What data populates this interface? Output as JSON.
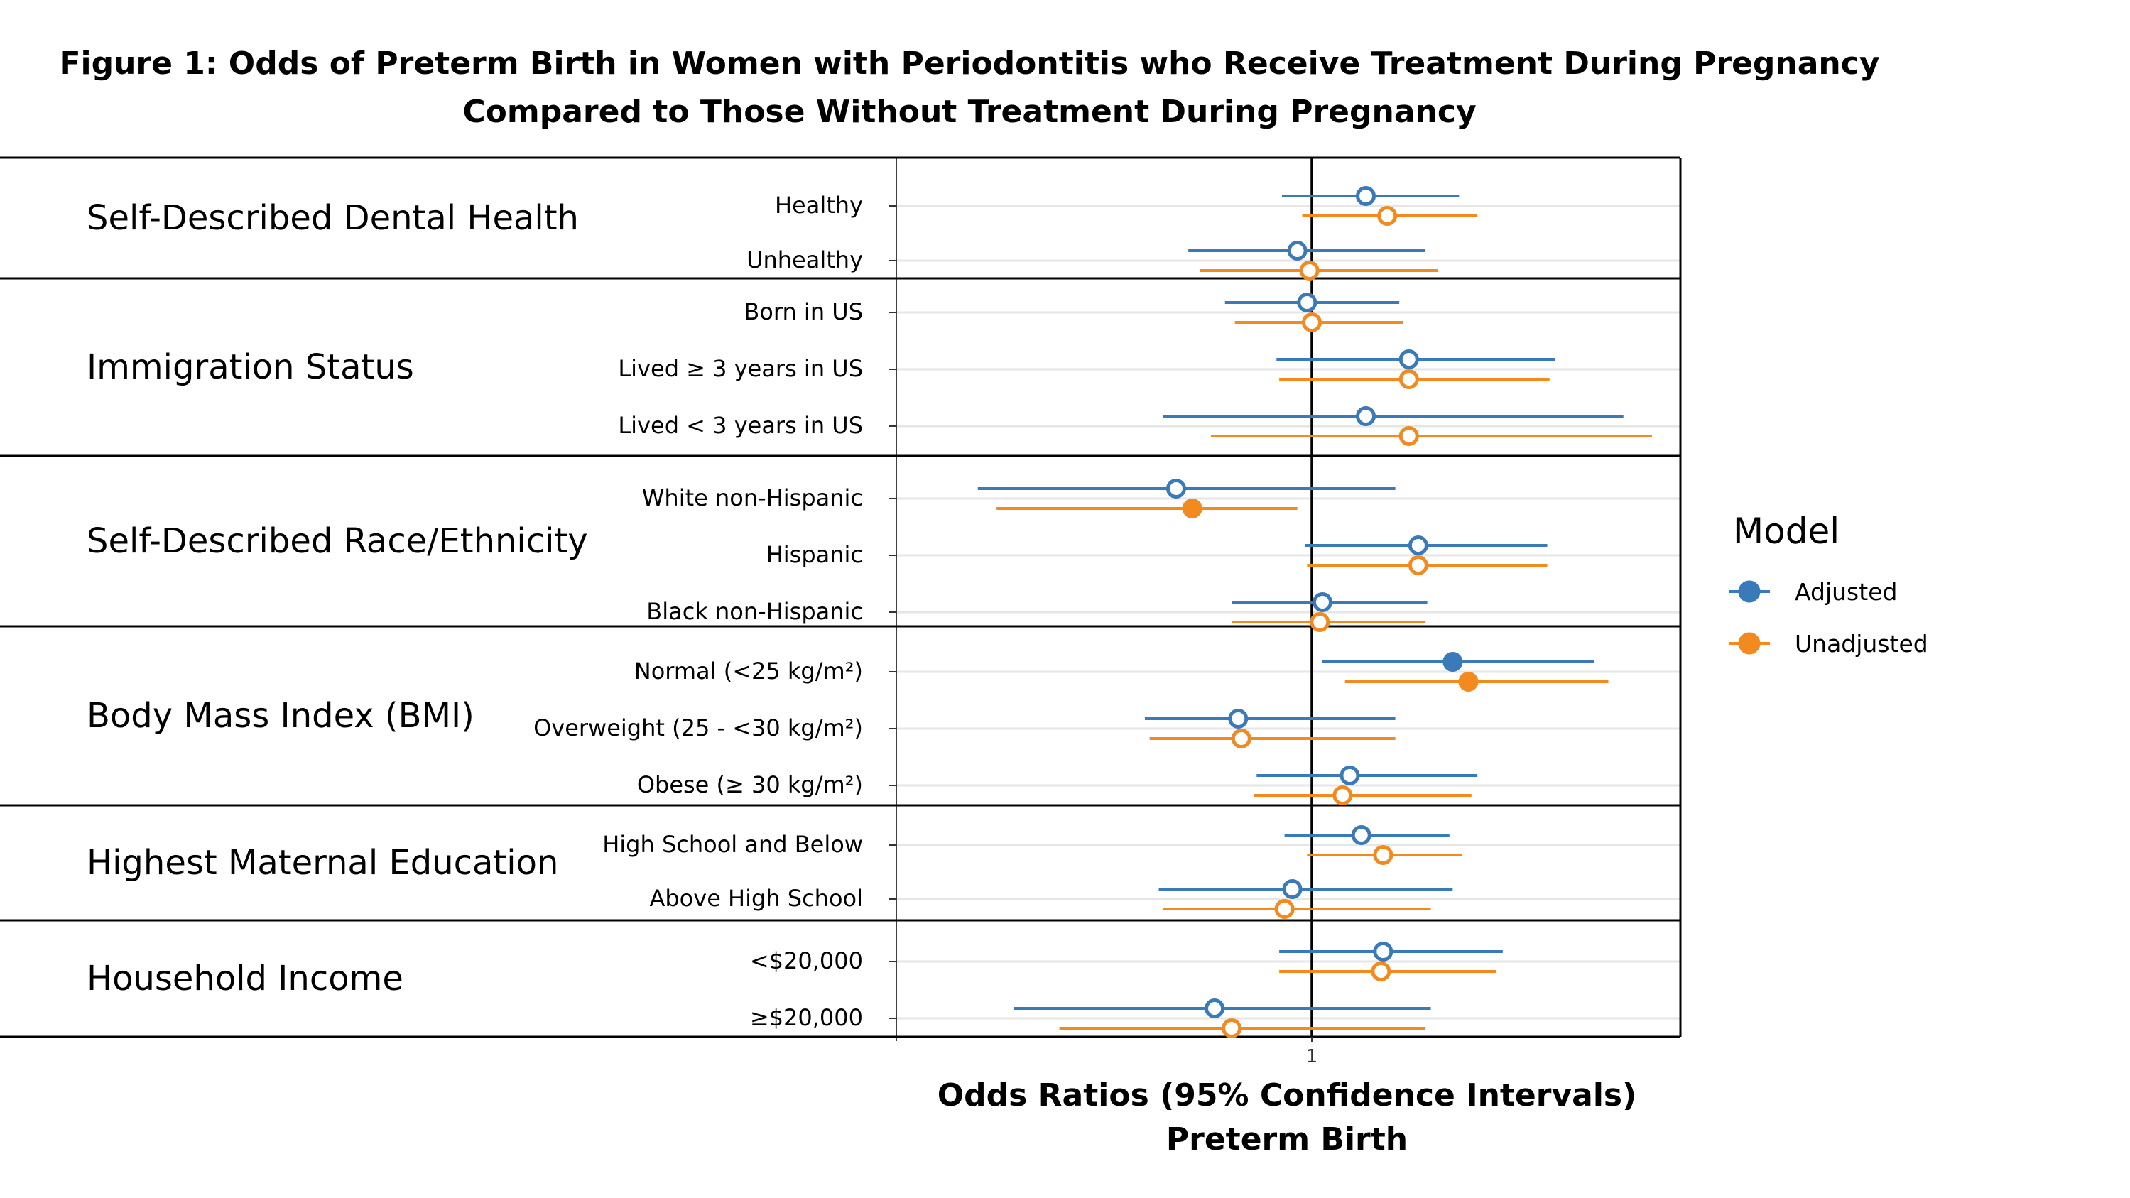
{
  "chart_data": {
    "type": "forest",
    "title": "Figure 1: Odds of Preterm Birth in Women with Periodontitis who Receive Treatment During Pregnancy",
    "subtitle": "Compared to Those Without Treatment During Pregnancy",
    "xlabel": "Odds Ratios (95% Confidence Intervals)",
    "xlabel2": "Preterm Birth",
    "xticks": [
      "1"
    ],
    "xlim": [
      0.18,
      3.5
    ],
    "xscale": "log",
    "reference_line": 1,
    "legend": {
      "title": "Model",
      "position": "right",
      "items": [
        "Adjusted",
        "Unadjusted"
      ]
    },
    "colors": {
      "Adjusted": "#3a7ab8",
      "Unadjusted": "#f28a1f"
    },
    "groups": [
      {
        "label": "Self-Described Dental Health",
        "rows": [
          {
            "label": "Healthy",
            "adjusted": {
              "or": 1.22,
              "lo": 0.88,
              "hi": 1.72,
              "significant": false
            },
            "unadjusted": {
              "or": 1.32,
              "lo": 0.96,
              "hi": 1.84,
              "significant": false
            }
          },
          {
            "label": "Unhealthy",
            "adjusted": {
              "or": 0.94,
              "lo": 0.59,
              "hi": 1.52,
              "significant": false
            },
            "unadjusted": {
              "or": 0.99,
              "lo": 0.62,
              "hi": 1.59,
              "significant": false
            }
          }
        ]
      },
      {
        "label": "Immigration Status",
        "rows": [
          {
            "label": "Born in US",
            "adjusted": {
              "or": 0.98,
              "lo": 0.69,
              "hi": 1.38,
              "significant": false
            },
            "unadjusted": {
              "or": 1.0,
              "lo": 0.72,
              "hi": 1.4,
              "significant": false
            }
          },
          {
            "label": "Lived ≥ 3 years in US",
            "adjusted": {
              "or": 1.43,
              "lo": 0.86,
              "hi": 2.45,
              "significant": false
            },
            "unadjusted": {
              "or": 1.43,
              "lo": 0.87,
              "hi": 2.4,
              "significant": false
            }
          },
          {
            "label": "Lived < 3 years in US",
            "adjusted": {
              "or": 1.22,
              "lo": 0.53,
              "hi": 3.15,
              "significant": false
            },
            "unadjusted": {
              "or": 1.43,
              "lo": 0.65,
              "hi": 3.5,
              "significant": false
            }
          }
        ]
      },
      {
        "label": "Self-Described Race/Ethnicity",
        "rows": [
          {
            "label": "White non-Hispanic",
            "adjusted": {
              "or": 0.56,
              "lo": 0.24,
              "hi": 1.36,
              "significant": false
            },
            "unadjusted": {
              "or": 0.6,
              "lo": 0.26,
              "hi": 0.94,
              "significant": true
            }
          },
          {
            "label": "Hispanic",
            "adjusted": {
              "or": 1.48,
              "lo": 0.97,
              "hi": 2.38,
              "significant": false
            },
            "unadjusted": {
              "or": 1.48,
              "lo": 0.98,
              "hi": 2.38,
              "significant": false
            }
          },
          {
            "label": "Black non-Hispanic",
            "adjusted": {
              "or": 1.04,
              "lo": 0.71,
              "hi": 1.53,
              "significant": false
            },
            "unadjusted": {
              "or": 1.03,
              "lo": 0.71,
              "hi": 1.52,
              "significant": false
            }
          }
        ]
      },
      {
        "label": "Body Mass Index (BMI)",
        "rows": [
          {
            "label": "Normal (<25 kg/m²)",
            "adjusted": {
              "or": 1.68,
              "lo": 1.04,
              "hi": 2.83,
              "significant": true
            },
            "unadjusted": {
              "or": 1.78,
              "lo": 1.13,
              "hi": 2.98,
              "significant": true
            }
          },
          {
            "label": "Overweight (25 - <30 kg/m²)",
            "adjusted": {
              "or": 0.73,
              "lo": 0.49,
              "hi": 1.36,
              "significant": false
            },
            "unadjusted": {
              "or": 0.74,
              "lo": 0.5,
              "hi": 1.36,
              "significant": false
            }
          },
          {
            "label": "Obese (≥ 30 kg/m²)",
            "adjusted": {
              "or": 1.15,
              "lo": 0.79,
              "hi": 1.84,
              "significant": false
            },
            "unadjusted": {
              "or": 1.12,
              "lo": 0.78,
              "hi": 1.8,
              "significant": false
            }
          }
        ]
      },
      {
        "label": "Highest Maternal Education",
        "rows": [
          {
            "label": "High School and Below",
            "adjusted": {
              "or": 1.2,
              "lo": 0.89,
              "hi": 1.66,
              "significant": false
            },
            "unadjusted": {
              "or": 1.3,
              "lo": 0.98,
              "hi": 1.74,
              "significant": false
            }
          },
          {
            "label": "Above High School",
            "adjusted": {
              "or": 0.92,
              "lo": 0.52,
              "hi": 1.68,
              "significant": false
            },
            "unadjusted": {
              "or": 0.89,
              "lo": 0.53,
              "hi": 1.55,
              "significant": false
            }
          }
        ]
      },
      {
        "label": "Household Income",
        "rows": [
          {
            "label": "<$20,000",
            "adjusted": {
              "or": 1.3,
              "lo": 0.87,
              "hi": 2.02,
              "significant": false
            },
            "unadjusted": {
              "or": 1.29,
              "lo": 0.87,
              "hi": 1.97,
              "significant": false
            }
          },
          {
            "label": "≥$20,000",
            "adjusted": {
              "or": 0.66,
              "lo": 0.28,
              "hi": 1.55,
              "significant": false
            },
            "unadjusted": {
              "or": 0.71,
              "lo": 0.34,
              "hi": 1.52,
              "significant": false
            }
          }
        ]
      }
    ]
  }
}
